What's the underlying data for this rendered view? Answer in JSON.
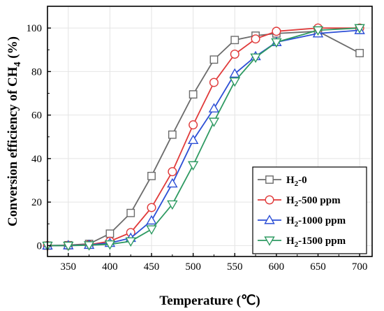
{
  "chart_data": {
    "type": "line",
    "xlabel": "Temperature (℃)",
    "ylabel_parts": [
      "Conversion efficiency of CH",
      "4",
      " (%)"
    ],
    "xlim": [
      325,
      715
    ],
    "ylim": [
      -5,
      110
    ],
    "x_ticks": [
      350,
      400,
      450,
      500,
      550,
      600,
      650,
      700
    ],
    "y_ticks": [
      0,
      20,
      40,
      60,
      80,
      100
    ],
    "grid": true,
    "legend_position": "bottom-right",
    "x": [
      325,
      350,
      375,
      400,
      425,
      450,
      475,
      500,
      525,
      550,
      575,
      600,
      650,
      700
    ],
    "series": [
      {
        "name": "H2-0",
        "legend_parts": [
          "H",
          "2",
          "-0"
        ],
        "color": "#6b6b6b",
        "marker": "square",
        "values": [
          0,
          0.2,
          0.8,
          5.5,
          15,
          32,
          51,
          69.5,
          85.5,
          94.5,
          96.5,
          97.5,
          98.5,
          88.5
        ]
      },
      {
        "name": "H2-500 ppm",
        "legend_parts": [
          "H",
          "2",
          "-500 ppm"
        ],
        "color": "#e03a3a",
        "marker": "circle",
        "values": [
          0,
          0.1,
          0.4,
          2,
          6,
          17.5,
          34,
          55.5,
          75,
          88,
          95,
          98.5,
          100,
          100
        ]
      },
      {
        "name": "H2-1000 ppm",
        "legend_parts": [
          "H",
          "2",
          "-1000 ppm"
        ],
        "color": "#2c4fd6",
        "marker": "triangle-up",
        "values": [
          0,
          0.1,
          0.3,
          1.2,
          3.5,
          11.5,
          28.5,
          48.5,
          63,
          79,
          87,
          93.5,
          97.5,
          99
        ]
      },
      {
        "name": "H2-1500 ppm",
        "legend_parts": [
          "H",
          "2",
          "-1500 ppm"
        ],
        "color": "#2e9a62",
        "marker": "triangle-down",
        "values": [
          0,
          0,
          0.2,
          0.6,
          2,
          7.5,
          19,
          37,
          57,
          75.5,
          86.5,
          93.5,
          99,
          100
        ]
      }
    ]
  }
}
